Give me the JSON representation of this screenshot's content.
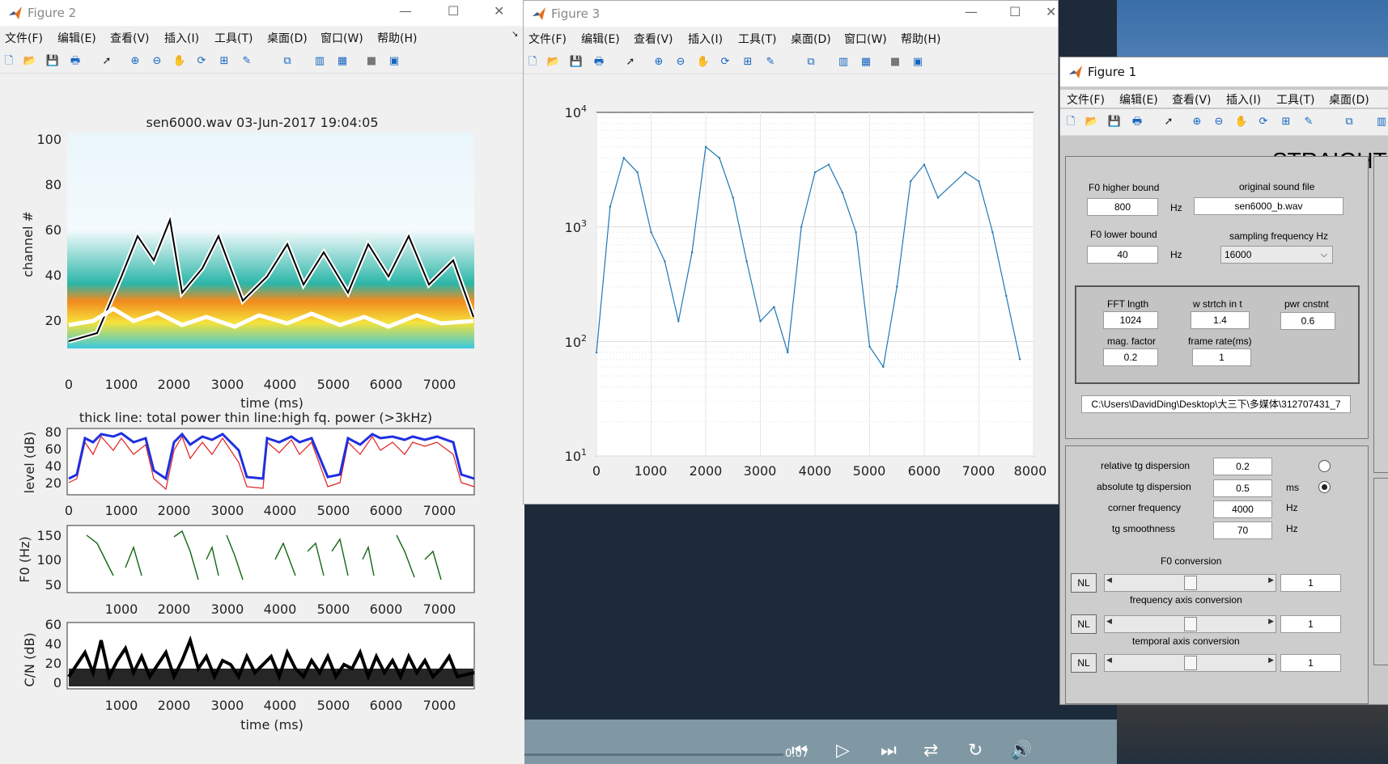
{
  "player": {
    "time": "0:07"
  },
  "menu": [
    "文件(F)",
    "编辑(E)",
    "查看(V)",
    "插入(I)",
    "工具(T)",
    "桌面(D)",
    "窗口(W)",
    "帮助(H)"
  ],
  "fig2": {
    "title": "Figure 2",
    "plot1": {
      "title": "sen6000.wav  03-Jun-2017 19:04:05",
      "ylabel": "channel #",
      "xlabel": "time (ms)",
      "yticks": [
        "100",
        "80",
        "60",
        "40",
        "20"
      ],
      "xticks": [
        "0",
        "1000",
        "2000",
        "3000",
        "4000",
        "5000",
        "6000",
        "7000"
      ]
    },
    "plot2": {
      "title": "thick line: total power thin line:high fq. power (>3kHz)",
      "ylabel": "level (dB)",
      "yticks": [
        "80",
        "60",
        "40",
        "20"
      ],
      "xticks": [
        "0",
        "1000",
        "2000",
        "3000",
        "4000",
        "5000",
        "6000",
        "7000"
      ]
    },
    "plot3": {
      "ylabel": "F0 (Hz)",
      "yticks": [
        "150",
        "100",
        "50"
      ],
      "xticks": [
        "1000",
        "2000",
        "3000",
        "4000",
        "5000",
        "6000",
        "7000"
      ]
    },
    "plot4": {
      "ylabel": "C/N (dB)",
      "xlabel": "time (ms)",
      "yticks": [
        "60",
        "40",
        "20",
        "0"
      ],
      "xticks": [
        "1000",
        "2000",
        "3000",
        "4000",
        "5000",
        "6000",
        "7000"
      ]
    }
  },
  "fig3": {
    "title": "Figure 3",
    "xticks": [
      "0",
      "1000",
      "2000",
      "3000",
      "4000",
      "5000",
      "6000",
      "7000",
      "8000"
    ],
    "yticks": [
      {
        "base": "10",
        "exp": "4"
      },
      {
        "base": "10",
        "exp": "3"
      },
      {
        "base": "10",
        "exp": "2"
      },
      {
        "base": "10",
        "exp": "1"
      }
    ]
  },
  "chart_data": {
    "type": "line",
    "xlim": [
      0,
      8000
    ],
    "ylim": [
      10,
      10000
    ],
    "yscale": "log",
    "grid": true,
    "x": [
      0,
      250,
      500,
      750,
      1000,
      1250,
      1500,
      1750,
      2000,
      2250,
      2500,
      2750,
      3000,
      3250,
      3500,
      3750,
      4000,
      4250,
      4500,
      4750,
      5000,
      5250,
      5500,
      5750,
      6000,
      6250,
      6750,
      7000,
      7250,
      7500,
      7750
    ],
    "values": [
      80,
      1500,
      4000,
      3000,
      900,
      500,
      150,
      600,
      5000,
      4000,
      1800,
      500,
      150,
      200,
      80,
      1000,
      3000,
      3500,
      2000,
      900,
      90,
      60,
      300,
      2500,
      3500,
      1800,
      3000,
      2500,
      900,
      250,
      70
    ]
  },
  "fig1": {
    "title": "Figure 1",
    "menu": [
      "文件(F)",
      "编辑(E)",
      "查看(V)",
      "插入(I)",
      "工具(T)",
      "桌面(D)"
    ],
    "heading": "STRAIGHT",
    "f0_high_label": "F0 higher bound",
    "f0_high": "800",
    "hz1": "Hz",
    "f0_low_label": "F0 lower bound",
    "f0_low": "40",
    "hz2": "Hz",
    "orig_label": "original sound file",
    "orig_file": "sen6000_b.wav",
    "sf_label": "sampling frequency Hz",
    "sf": "16000",
    "fft_label": "FFT lngth",
    "fft": "1024",
    "wst_label": "w strtch in t",
    "wst": "1.4",
    "pwr_label": "pwr cnstnt",
    "pwr": "0.6",
    "mag_label": "mag. factor",
    "mag": "0.2",
    "frame_label": "frame rate(ms)",
    "frame": "1",
    "path": "C:\\Users\\DavidDing\\Desktop\\大三下\\多媒体\\312707431_7",
    "rel_label": "relative tg dispersion",
    "rel": "0.2",
    "abs_label": "absolute tg dispersion",
    "abs": "0.5",
    "ms": "ms",
    "corner_label": "corner frequency",
    "corner": "4000",
    "hz3": "Hz",
    "tgs_label": "tg smoothness",
    "tgs": "70",
    "hz4": "Hz",
    "f0conv_label": "F0 conversion",
    "nl": "NL",
    "f0conv": "1",
    "freqconv_label": "frequency axis conversion",
    "freqconv": "1",
    "tempconv_label": "temporal axis conversion",
    "tempconv": "1"
  }
}
